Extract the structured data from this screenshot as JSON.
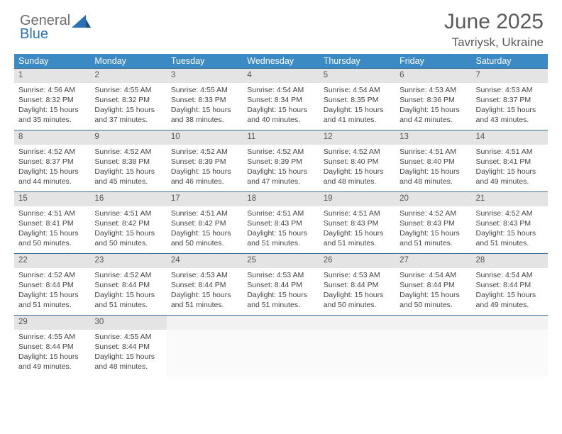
{
  "brand": {
    "word1": "General",
    "word2": "Blue"
  },
  "title": "June 2025",
  "location": "Tavriysk, Ukraine",
  "colors": {
    "header_bg": "#3b8ac4",
    "header_text": "#ffffff",
    "week_border": "#3b6d92",
    "daynum_bg": "#e4e4e4",
    "logo_gray": "#6b6b6b",
    "logo_blue": "#2a72b5"
  },
  "day_names": [
    "Sunday",
    "Monday",
    "Tuesday",
    "Wednesday",
    "Thursday",
    "Friday",
    "Saturday"
  ],
  "days": [
    {
      "n": 1,
      "sunrise": "4:56 AM",
      "sunset": "8:32 PM",
      "daylight": "15 hours and 35 minutes."
    },
    {
      "n": 2,
      "sunrise": "4:55 AM",
      "sunset": "8:32 PM",
      "daylight": "15 hours and 37 minutes."
    },
    {
      "n": 3,
      "sunrise": "4:55 AM",
      "sunset": "8:33 PM",
      "daylight": "15 hours and 38 minutes."
    },
    {
      "n": 4,
      "sunrise": "4:54 AM",
      "sunset": "8:34 PM",
      "daylight": "15 hours and 40 minutes."
    },
    {
      "n": 5,
      "sunrise": "4:54 AM",
      "sunset": "8:35 PM",
      "daylight": "15 hours and 41 minutes."
    },
    {
      "n": 6,
      "sunrise": "4:53 AM",
      "sunset": "8:36 PM",
      "daylight": "15 hours and 42 minutes."
    },
    {
      "n": 7,
      "sunrise": "4:53 AM",
      "sunset": "8:37 PM",
      "daylight": "15 hours and 43 minutes."
    },
    {
      "n": 8,
      "sunrise": "4:52 AM",
      "sunset": "8:37 PM",
      "daylight": "15 hours and 44 minutes."
    },
    {
      "n": 9,
      "sunrise": "4:52 AM",
      "sunset": "8:38 PM",
      "daylight": "15 hours and 45 minutes."
    },
    {
      "n": 10,
      "sunrise": "4:52 AM",
      "sunset": "8:39 PM",
      "daylight": "15 hours and 46 minutes."
    },
    {
      "n": 11,
      "sunrise": "4:52 AM",
      "sunset": "8:39 PM",
      "daylight": "15 hours and 47 minutes."
    },
    {
      "n": 12,
      "sunrise": "4:52 AM",
      "sunset": "8:40 PM",
      "daylight": "15 hours and 48 minutes."
    },
    {
      "n": 13,
      "sunrise": "4:51 AM",
      "sunset": "8:40 PM",
      "daylight": "15 hours and 48 minutes."
    },
    {
      "n": 14,
      "sunrise": "4:51 AM",
      "sunset": "8:41 PM",
      "daylight": "15 hours and 49 minutes."
    },
    {
      "n": 15,
      "sunrise": "4:51 AM",
      "sunset": "8:41 PM",
      "daylight": "15 hours and 50 minutes."
    },
    {
      "n": 16,
      "sunrise": "4:51 AM",
      "sunset": "8:42 PM",
      "daylight": "15 hours and 50 minutes."
    },
    {
      "n": 17,
      "sunrise": "4:51 AM",
      "sunset": "8:42 PM",
      "daylight": "15 hours and 50 minutes."
    },
    {
      "n": 18,
      "sunrise": "4:51 AM",
      "sunset": "8:43 PM",
      "daylight": "15 hours and 51 minutes."
    },
    {
      "n": 19,
      "sunrise": "4:51 AM",
      "sunset": "8:43 PM",
      "daylight": "15 hours and 51 minutes."
    },
    {
      "n": 20,
      "sunrise": "4:52 AM",
      "sunset": "8:43 PM",
      "daylight": "15 hours and 51 minutes."
    },
    {
      "n": 21,
      "sunrise": "4:52 AM",
      "sunset": "8:43 PM",
      "daylight": "15 hours and 51 minutes."
    },
    {
      "n": 22,
      "sunrise": "4:52 AM",
      "sunset": "8:44 PM",
      "daylight": "15 hours and 51 minutes."
    },
    {
      "n": 23,
      "sunrise": "4:52 AM",
      "sunset": "8:44 PM",
      "daylight": "15 hours and 51 minutes."
    },
    {
      "n": 24,
      "sunrise": "4:53 AM",
      "sunset": "8:44 PM",
      "daylight": "15 hours and 51 minutes."
    },
    {
      "n": 25,
      "sunrise": "4:53 AM",
      "sunset": "8:44 PM",
      "daylight": "15 hours and 51 minutes."
    },
    {
      "n": 26,
      "sunrise": "4:53 AM",
      "sunset": "8:44 PM",
      "daylight": "15 hours and 50 minutes."
    },
    {
      "n": 27,
      "sunrise": "4:54 AM",
      "sunset": "8:44 PM",
      "daylight": "15 hours and 50 minutes."
    },
    {
      "n": 28,
      "sunrise": "4:54 AM",
      "sunset": "8:44 PM",
      "daylight": "15 hours and 49 minutes."
    },
    {
      "n": 29,
      "sunrise": "4:55 AM",
      "sunset": "8:44 PM",
      "daylight": "15 hours and 49 minutes."
    },
    {
      "n": 30,
      "sunrise": "4:55 AM",
      "sunset": "8:44 PM",
      "daylight": "15 hours and 48 minutes."
    }
  ],
  "labels": {
    "sunrise": "Sunrise: ",
    "sunset": "Sunset: ",
    "daylight": "Daylight: "
  },
  "layout": {
    "first_weekday": 0,
    "weeks": 5,
    "cols": 7
  }
}
